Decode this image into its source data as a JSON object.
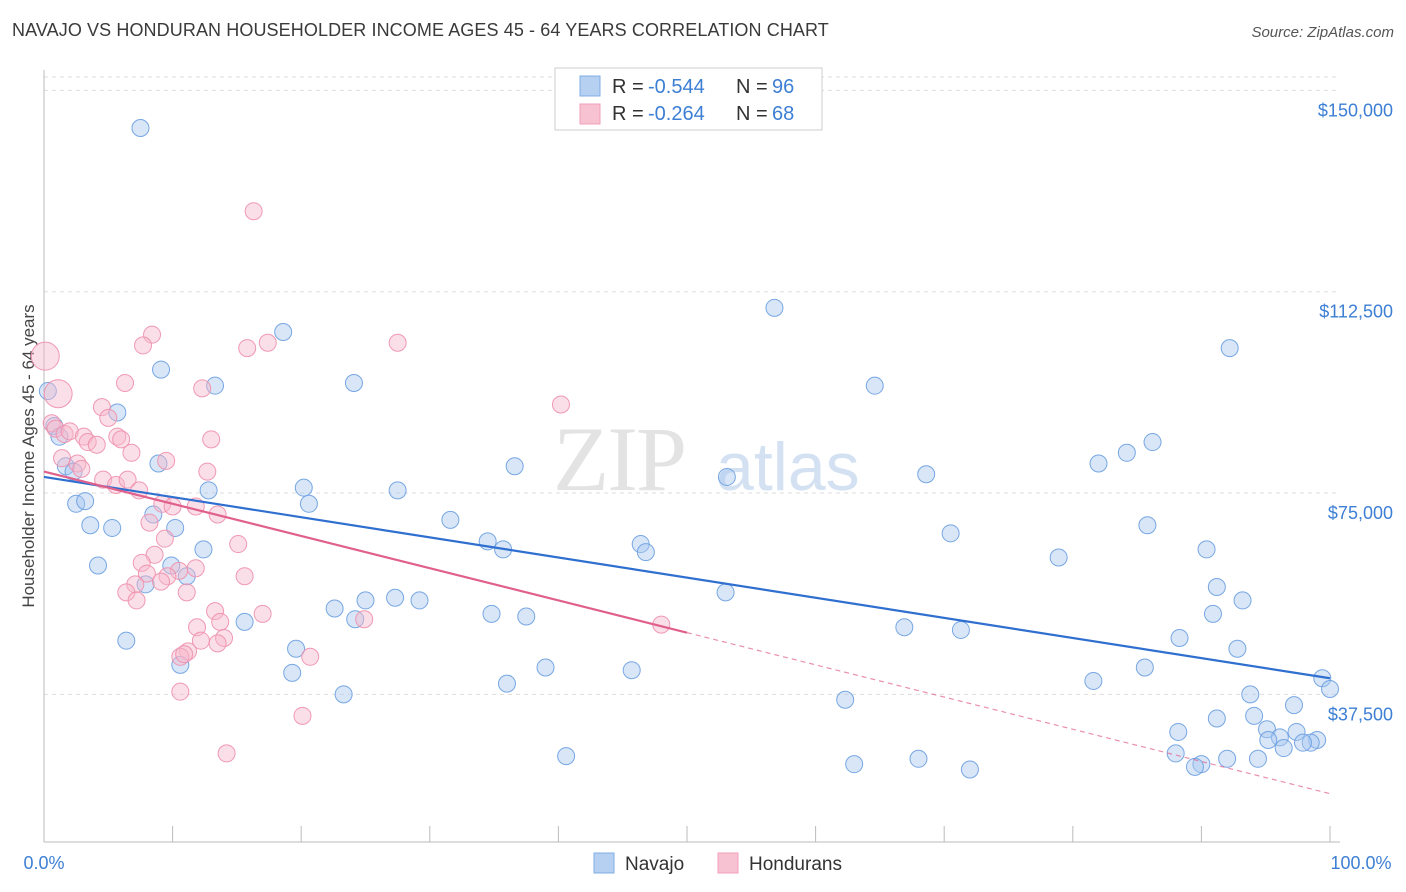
{
  "header": {
    "title": "NAVAJO VS HONDURAN HOUSEHOLDER INCOME AGES 45 - 64 YEARS CORRELATION CHART",
    "source": "Source: ZipAtlas.com"
  },
  "watermark": {
    "zip": "ZIP",
    "atlas": "atlas"
  },
  "legend": {
    "rows": [
      {
        "r_label": "R =",
        "r_value": "-0.544",
        "n_label": "N =",
        "n_value": "96"
      },
      {
        "r_label": "R =",
        "r_value": "-0.264",
        "n_label": "N =",
        "n_value": "68"
      }
    ]
  },
  "bottom_legend": {
    "navajo": "Navajo",
    "hondurans": "Hondurans"
  },
  "colors": {
    "navajo_fill": "#a9c8ef",
    "navajo_stroke": "#6a9fe0",
    "navajo_line": "#2f6fcf",
    "hondurans_fill": "#f6b8cb",
    "hondurans_stroke": "#ee8fac",
    "hondurans_line": "#e0608c",
    "axis_text": "#3d7fd4",
    "grid": "#dddddd"
  },
  "chart_data": {
    "type": "scatter",
    "title": "NAVAJO VS HONDURAN HOUSEHOLDER INCOME AGES 45 - 64 YEARS CORRELATION CHART",
    "xlabel": "",
    "ylabel": "Householder Income Ages 45 - 64 years",
    "xlim": [
      0,
      100
    ],
    "ylim": [
      10000,
      152500
    ],
    "x_tick_labels": [
      "0.0%",
      "100.0%"
    ],
    "y_ticks": [
      37500,
      75000,
      112500,
      150000
    ],
    "y_tick_labels": [
      "$37,500",
      "$75,000",
      "$112,500",
      "$150,000"
    ],
    "grid": true,
    "series": [
      {
        "name": "Navajo",
        "trendline": {
          "x": [
            0,
            100
          ],
          "y": [
            78000,
            40500
          ],
          "style": "solid"
        },
        "points": [
          [
            7.5,
            143000
          ],
          [
            56.8,
            109500
          ],
          [
            18.6,
            105000
          ],
          [
            92.2,
            102000
          ],
          [
            9.1,
            98000
          ],
          [
            13.3,
            95000
          ],
          [
            24.1,
            95500
          ],
          [
            64.6,
            95000
          ],
          [
            0.3,
            94000
          ],
          [
            5.7,
            90000
          ],
          [
            0.8,
            87500
          ],
          [
            1.2,
            85500
          ],
          [
            86.2,
            84500
          ],
          [
            84.2,
            82500
          ],
          [
            82.0,
            80500
          ],
          [
            1.7,
            80000
          ],
          [
            2.3,
            79000
          ],
          [
            8.9,
            80500
          ],
          [
            36.6,
            80000
          ],
          [
            53.1,
            78000
          ],
          [
            68.6,
            78500
          ],
          [
            12.8,
            75500
          ],
          [
            20.2,
            76000
          ],
          [
            27.5,
            75500
          ],
          [
            2.5,
            73000
          ],
          [
            3.2,
            73500
          ],
          [
            20.6,
            73000
          ],
          [
            8.5,
            71000
          ],
          [
            31.6,
            70000
          ],
          [
            3.6,
            69000
          ],
          [
            5.3,
            68500
          ],
          [
            10.2,
            68500
          ],
          [
            85.8,
            69000
          ],
          [
            70.5,
            67500
          ],
          [
            34.5,
            66000
          ],
          [
            12.4,
            64500
          ],
          [
            35.7,
            64500
          ],
          [
            46.4,
            65500
          ],
          [
            46.8,
            64000
          ],
          [
            90.4,
            64500
          ],
          [
            78.9,
            63000
          ],
          [
            4.2,
            61500
          ],
          [
            9.9,
            61500
          ],
          [
            11.1,
            59500
          ],
          [
            7.9,
            58000
          ],
          [
            91.2,
            57500
          ],
          [
            53.0,
            56500
          ],
          [
            93.2,
            55000
          ],
          [
            27.3,
            55500
          ],
          [
            29.2,
            55000
          ],
          [
            25.0,
            55000
          ],
          [
            22.6,
            53500
          ],
          [
            90.9,
            52500
          ],
          [
            34.8,
            52500
          ],
          [
            37.5,
            52000
          ],
          [
            24.2,
            51500
          ],
          [
            15.6,
            51000
          ],
          [
            66.9,
            50000
          ],
          [
            71.3,
            49500
          ],
          [
            88.3,
            48000
          ],
          [
            6.4,
            47500
          ],
          [
            19.6,
            46000
          ],
          [
            92.8,
            46000
          ],
          [
            10.6,
            43000
          ],
          [
            39.0,
            42500
          ],
          [
            45.7,
            42000
          ],
          [
            19.3,
            41500
          ],
          [
            85.6,
            42500
          ],
          [
            99.4,
            40500
          ],
          [
            100.0,
            38500
          ],
          [
            81.6,
            40000
          ],
          [
            36.0,
            39500
          ],
          [
            23.3,
            37500
          ],
          [
            93.8,
            37500
          ],
          [
            62.3,
            36500
          ],
          [
            97.2,
            35500
          ],
          [
            91.2,
            33000
          ],
          [
            94.1,
            33500
          ],
          [
            88.2,
            30500
          ],
          [
            95.1,
            31000
          ],
          [
            96.1,
            29500
          ],
          [
            97.4,
            30500
          ],
          [
            95.2,
            29000
          ],
          [
            99.0,
            29000
          ],
          [
            98.5,
            28500
          ],
          [
            97.9,
            28500
          ],
          [
            96.4,
            27500
          ],
          [
            40.6,
            26000
          ],
          [
            63.0,
            24500
          ],
          [
            68.0,
            25500
          ],
          [
            72.0,
            23500
          ],
          [
            88.0,
            26500
          ],
          [
            90.0,
            24500
          ],
          [
            92.0,
            25500
          ],
          [
            89.5,
            24000
          ],
          [
            94.4,
            25500
          ]
        ]
      },
      {
        "name": "Hondurans",
        "trendline": {
          "x": [
            0,
            50
          ],
          "y": [
            79000,
            49000
          ],
          "style": "solid"
        },
        "trendline_ext": {
          "x": [
            50,
            100
          ],
          "y": [
            49000,
            19000
          ],
          "style": "dashed"
        },
        "points": [
          [
            0.1,
            100500
          ],
          [
            1.1,
            93500
          ],
          [
            16.3,
            127500
          ],
          [
            8.4,
            104500
          ],
          [
            7.7,
            102500
          ],
          [
            15.8,
            102000
          ],
          [
            17.4,
            103000
          ],
          [
            27.5,
            103000
          ],
          [
            0.6,
            88000
          ],
          [
            0.9,
            87000
          ],
          [
            4.5,
            91000
          ],
          [
            5.0,
            89000
          ],
          [
            6.3,
            95500
          ],
          [
            12.3,
            94500
          ],
          [
            40.2,
            91500
          ],
          [
            1.6,
            86000
          ],
          [
            2.0,
            86500
          ],
          [
            3.1,
            85500
          ],
          [
            3.4,
            84500
          ],
          [
            4.1,
            84000
          ],
          [
            5.7,
            85500
          ],
          [
            6.0,
            85000
          ],
          [
            13.0,
            85000
          ],
          [
            1.4,
            81500
          ],
          [
            2.6,
            80500
          ],
          [
            6.8,
            82500
          ],
          [
            9.5,
            81000
          ],
          [
            12.7,
            79000
          ],
          [
            2.9,
            79500
          ],
          [
            4.6,
            77500
          ],
          [
            5.6,
            76500
          ],
          [
            6.5,
            77500
          ],
          [
            7.4,
            75500
          ],
          [
            9.2,
            73000
          ],
          [
            10.0,
            72500
          ],
          [
            13.5,
            71000
          ],
          [
            11.8,
            72500
          ],
          [
            8.2,
            69500
          ],
          [
            9.4,
            66500
          ],
          [
            15.1,
            65500
          ],
          [
            8.6,
            63500
          ],
          [
            7.6,
            62000
          ],
          [
            11.8,
            61000
          ],
          [
            10.5,
            60500
          ],
          [
            8.0,
            60000
          ],
          [
            9.6,
            59500
          ],
          [
            15.6,
            59500
          ],
          [
            7.1,
            58000
          ],
          [
            6.4,
            56500
          ],
          [
            11.1,
            56500
          ],
          [
            7.2,
            55000
          ],
          [
            13.3,
            53000
          ],
          [
            17.0,
            52500
          ],
          [
            24.9,
            51500
          ],
          [
            13.7,
            51000
          ],
          [
            48.0,
            50500
          ],
          [
            11.9,
            50000
          ],
          [
            14.0,
            48000
          ],
          [
            13.5,
            47000
          ],
          [
            11.2,
            45500
          ],
          [
            10.6,
            44500
          ],
          [
            20.7,
            44500
          ],
          [
            10.6,
            38000
          ],
          [
            20.1,
            33500
          ],
          [
            14.2,
            26500
          ],
          [
            10.9,
            45000
          ],
          [
            9.1,
            58500
          ],
          [
            12.2,
            47500
          ]
        ]
      }
    ]
  }
}
